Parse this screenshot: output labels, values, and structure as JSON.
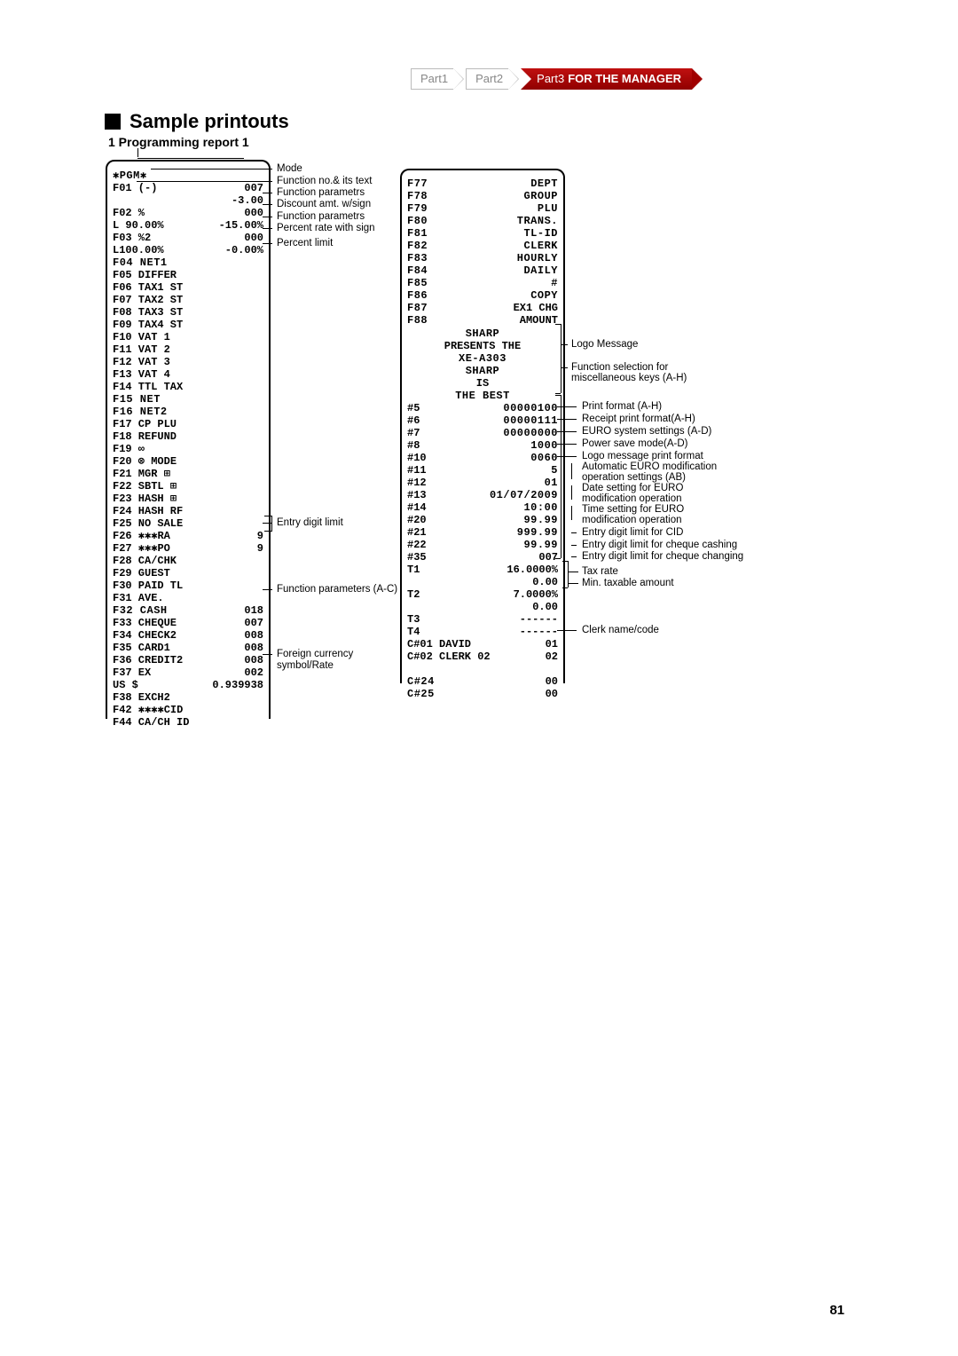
{
  "breadcrumb": {
    "p1": "Part1",
    "p2": "Part2",
    "p3": "Part3",
    "p3b": "FOR THE MANAGER"
  },
  "title": "Sample printouts",
  "sub": "1  Programming report 1",
  "pagenum": "81",
  "r1_header": "✱PGM✱",
  "r1": [
    {
      "l": "F01 (-)",
      "r": "007"
    },
    {
      "l": "",
      "r": "-3.00"
    },
    {
      "l": "F02 %",
      "r": "000"
    },
    {
      "l": "L 90.00%",
      "r": "-15.00%"
    },
    {
      "l": "F03 %2",
      "r": "000"
    },
    {
      "l": "L100.00%",
      "r": "-0.00%"
    },
    {
      "l": "F04 NET1",
      "r": ""
    },
    {
      "l": "F05 DIFFER",
      "r": ""
    },
    {
      "l": "F06 TAX1 ST",
      "r": ""
    },
    {
      "l": "F07 TAX2 ST",
      "r": ""
    },
    {
      "l": "F08 TAX3 ST",
      "r": ""
    },
    {
      "l": "F09 TAX4 ST",
      "r": ""
    },
    {
      "l": "F10 VAT 1",
      "r": ""
    },
    {
      "l": "F11 VAT 2",
      "r": ""
    },
    {
      "l": "F12 VAT 3",
      "r": ""
    },
    {
      "l": "F13 VAT 4",
      "r": ""
    },
    {
      "l": "F14 TTL TAX",
      "r": ""
    },
    {
      "l": "F15 NET",
      "r": ""
    },
    {
      "l": "F16 NET2",
      "r": ""
    },
    {
      "l": "F17 CP PLU",
      "r": ""
    },
    {
      "l": "F18 REFUND",
      "r": ""
    },
    {
      "l": "F19 ∞",
      "r": ""
    },
    {
      "l": "F20 ⊗ MODE",
      "r": ""
    },
    {
      "l": "F21 MGR ⊞",
      "r": ""
    },
    {
      "l": "F22 SBTL ⊞",
      "r": ""
    },
    {
      "l": "F23 HASH ⊞",
      "r": ""
    },
    {
      "l": "F24 HASH RF",
      "r": ""
    },
    {
      "l": "F25 NO SALE",
      "r": ""
    },
    {
      "l": "F26 ✱✱✱RA",
      "r": "9"
    },
    {
      "l": "F27 ✱✱✱PO",
      "r": "9"
    },
    {
      "l": "F28 CA/CHK",
      "r": ""
    },
    {
      "l": "F29 GUEST",
      "r": ""
    },
    {
      "l": "F30 PAID TL",
      "r": ""
    },
    {
      "l": "F31 AVE.",
      "r": ""
    },
    {
      "l": "F32 CASH",
      "r": "018"
    },
    {
      "l": "F33 CHEQUE",
      "r": "007"
    },
    {
      "l": "F34 CHECK2",
      "r": "008"
    },
    {
      "l": "F35 CARD1",
      "r": "008"
    },
    {
      "l": "F36 CREDIT2",
      "r": "008"
    },
    {
      "l": "F37 EX",
      "r": "002"
    },
    {
      "l": " US $",
      "r": "0.939938"
    },
    {
      "l": "F38 EXCH2",
      "r": ""
    },
    {
      "l": "F42 ✱✱✱✱CID",
      "r": ""
    },
    {
      "l": "F44 CA/CH ID",
      "r": ""
    }
  ],
  "r2a": [
    {
      "l": "F77",
      "r": "DEPT"
    },
    {
      "l": "F78",
      "r": "GROUP"
    },
    {
      "l": "F79",
      "r": "PLU"
    },
    {
      "l": "F80",
      "r": "TRANS."
    },
    {
      "l": "F81",
      "r": "TL-ID"
    },
    {
      "l": "F82",
      "r": "CLERK"
    },
    {
      "l": "F83",
      "r": "HOURLY"
    },
    {
      "l": "F84",
      "r": "DAILY"
    },
    {
      "l": "F85",
      "r": "#"
    },
    {
      "l": "F86",
      "r": "COPY"
    },
    {
      "l": "F87",
      "r": "EX1 CHG"
    },
    {
      "l": "F88",
      "r": "AMOUNT"
    }
  ],
  "logo": [
    "SHARP",
    "PRESENTS THE",
    "XE-A303",
    "SHARP",
    "IS",
    "THE  BEST"
  ],
  "r2b": [
    {
      "l": "#5",
      "r": "00000100"
    },
    {
      "l": "#6",
      "r": "00000111"
    },
    {
      "l": "#7",
      "r": "00000000"
    },
    {
      "l": "#8",
      "r": "1000"
    },
    {
      "l": "#10",
      "r": "0060"
    },
    {
      "l": "#11",
      "r": "5"
    },
    {
      "l": "#12",
      "r": "01"
    },
    {
      "l": "#13",
      "r": "01/07/2009"
    },
    {
      "l": "#14",
      "r": "10:00"
    },
    {
      "l": "#20",
      "r": "99.99"
    },
    {
      "l": "#21",
      "r": "999.99"
    },
    {
      "l": "#22",
      "r": "99.99"
    },
    {
      "l": "#35",
      "r": "007"
    },
    {
      "l": "T1",
      "r": "16.0000%"
    },
    {
      "l": "",
      "r": "0.00"
    },
    {
      "l": "T2",
      "r": "7.0000%"
    },
    {
      "l": "",
      "r": "0.00"
    },
    {
      "l": "T3",
      "r": "------"
    },
    {
      "l": "T4",
      "r": "------"
    },
    {
      "l": "C#01 DAVID",
      "r": "01"
    },
    {
      "l": "C#02 CLERK 02",
      "r": "02"
    }
  ],
  "r2c": [
    {
      "l": "C#24",
      "r": "00"
    },
    {
      "l": "C#25",
      "r": "00"
    }
  ],
  "ann_left": [
    "Mode",
    "Function no.& its text",
    "Function parametrs",
    "Discount amt. w/sign",
    "Function parametrs",
    "Percent rate with sign",
    "Percent limit",
    "Entry digit limit",
    "Function parameters (A-C)",
    "Foreign currency",
    "symbol/Rate"
  ],
  "ann_right": [
    "Logo Message",
    "Function selection for",
    "miscellaneous keys (A-H)",
    "Print format (A-H)",
    "Receipt print format(A-H)",
    "EURO system settings (A-D)",
    "Power save mode(A-D)",
    "Logo message print format",
    "Automatic EURO modification",
    "operation settings (AB)",
    "Date setting for EURO",
    "modification operation",
    "Time setting for EURO",
    "modification operation",
    "Entry digit limit for CID",
    "Entry digit limit for cheque cashing",
    "Entry digit limit for cheque changing",
    "Tax rate",
    "Min. taxable amount",
    "Clerk name/code"
  ]
}
